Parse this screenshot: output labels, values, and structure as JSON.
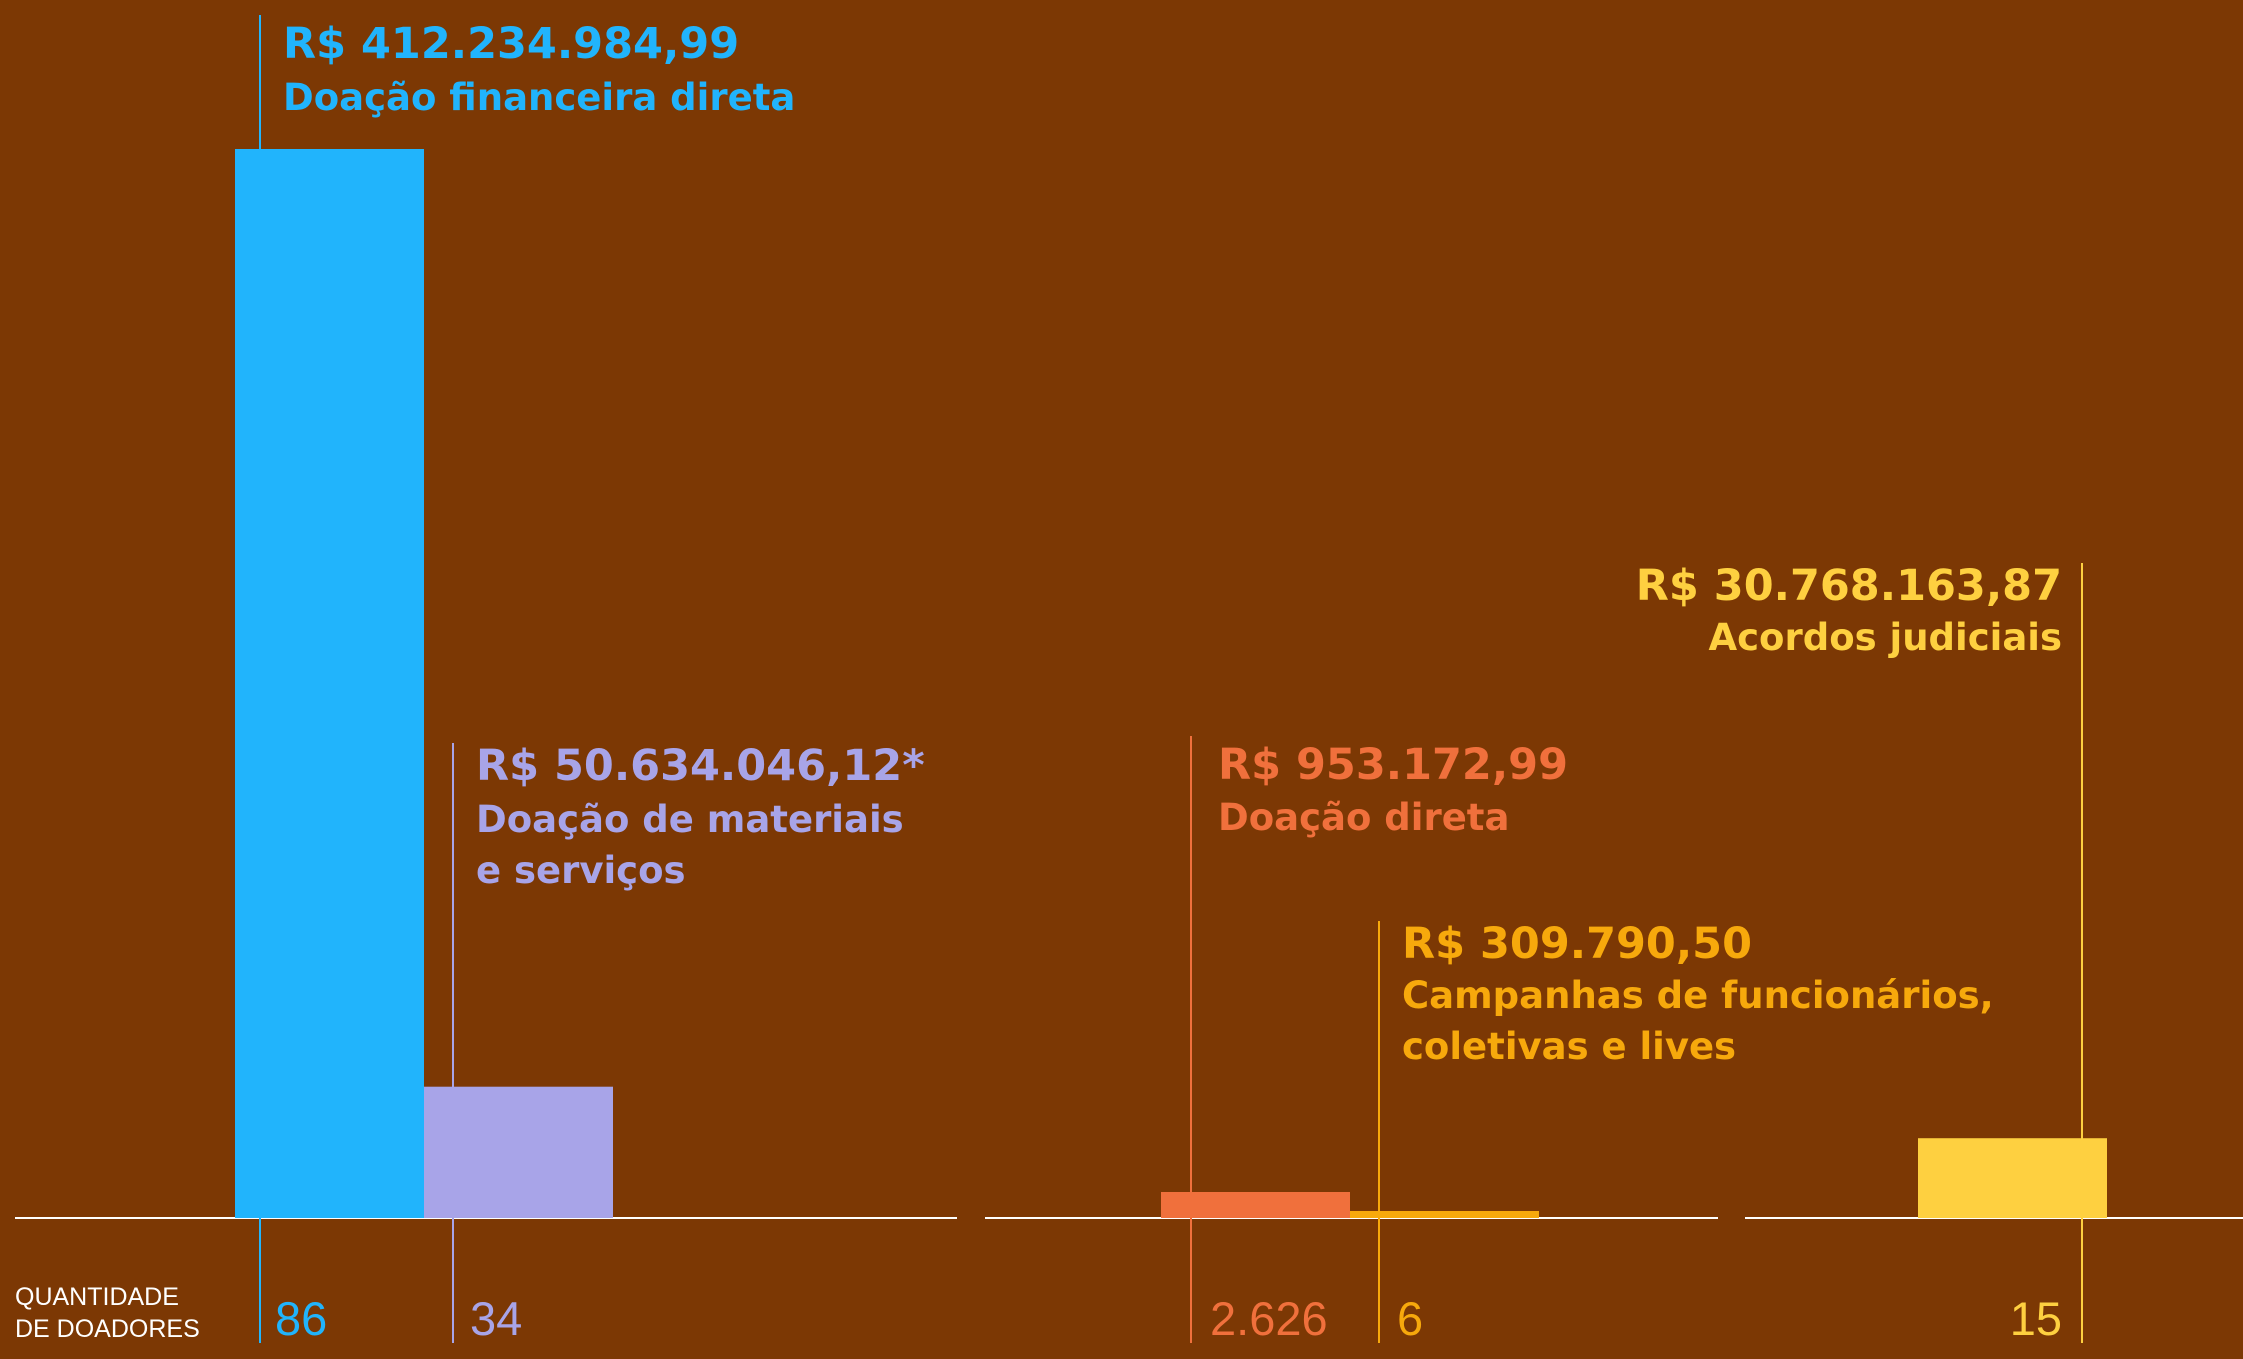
{
  "chart_data": {
    "type": "bar",
    "series": [
      {
        "amount": "R$ 412.234.984,99",
        "category": "Doação financeira direta",
        "value": 412234984.99,
        "donors": "86",
        "color": "#21b4fc"
      },
      {
        "amount": "R$ 50.634.046,12*",
        "category": "Doação de materiais e serviços",
        "value": 50634046.12,
        "donors": "34",
        "color": "#a8a4e8"
      },
      {
        "amount": "R$ 953.172,99",
        "category": "Doação direta",
        "value": 953172.99,
        "donors": "2.626",
        "color": "#f0703c"
      },
      {
        "amount": "R$ 309.790,50",
        "category": "Campanhas de funcionários, coletivas  e lives",
        "value": 309790.5,
        "donors": "6",
        "color": "#f7a90c"
      },
      {
        "amount": "R$ 30.768.163,87",
        "category": "Acordos judiciais",
        "value": 30768163.87,
        "donors": "15",
        "color": "#fed040"
      }
    ],
    "axis_label": "QUANTIDADE DE DOADORES",
    "ylim": [
      0,
      412234984.99
    ],
    "grid": false,
    "legend": "none"
  },
  "colors": {
    "background": "#7c3804",
    "baseline": "#ffffff"
  }
}
